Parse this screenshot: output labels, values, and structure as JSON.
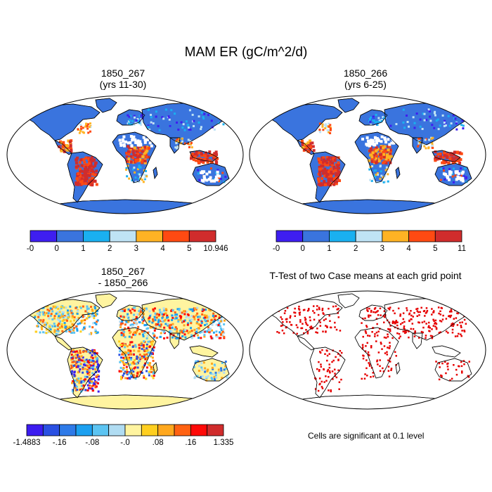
{
  "main_title": "MAM ER (gC/m^2/d)",
  "panels": [
    {
      "title_line1": "1850_267",
      "title_line2": "(yrs 11-30)"
    },
    {
      "title_line1": "1850_266",
      "title_line2": "(yrs 6-25)"
    },
    {
      "title_line1": "1850_267",
      "title_line2": "- 1850_266"
    },
    {
      "title_line1": "T-Test of two Case means at each grid point",
      "title_line2": ""
    }
  ],
  "colorbars": [
    {
      "colors": [
        "#3e1ef0",
        "#3a74de",
        "#1ab0f0",
        "#bfe3f5",
        "#ffb324",
        "#ff4a12",
        "#d02c2c"
      ],
      "labels": [
        "-0",
        "0",
        "1",
        "2",
        "3",
        "4",
        "5",
        "10.946"
      ]
    },
    {
      "colors": [
        "#3e1ef0",
        "#3a74de",
        "#1ab0f0",
        "#bfe3f5",
        "#ffb324",
        "#ff4a12",
        "#d02c2c"
      ],
      "labels": [
        "-0",
        "0",
        "1",
        "2",
        "3",
        "4",
        "5",
        "11"
      ]
    },
    {
      "colors": [
        "#3c1cf0",
        "#2a50e2",
        "#2e7ae8",
        "#1ca0f0",
        "#5cc4f2",
        "#b0dcf2",
        "#fff4a0",
        "#ffcf20",
        "#ffa81e",
        "#ff6212",
        "#ff0a08",
        "#d02c2c"
      ],
      "labels": [
        "-1.4883",
        "-.16",
        "-.08",
        "-.0",
        ".08",
        ".16",
        "1.335"
      ]
    }
  ],
  "significance_note": "Cells are significant at 0.1 level",
  "significance_color": "#e60000"
}
